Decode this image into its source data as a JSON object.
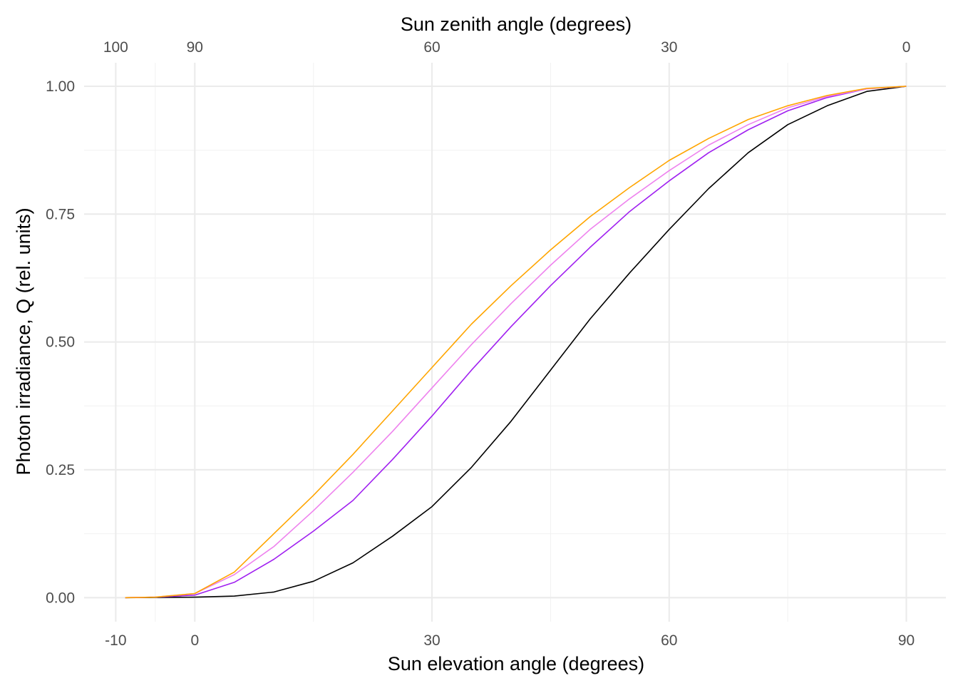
{
  "chart_data": {
    "type": "line",
    "title": "",
    "xlabel": "Sun elevation angle (degrees)",
    "x2label": "Sun zenith angle (degrees)",
    "ylabel": "Photon irradiance,  Q  (rel. units)",
    "xlim": [
      -14,
      95
    ],
    "ylim": [
      -0.047,
      1.046
    ],
    "grid": true,
    "x_ticks": [
      -10,
      0,
      30,
      60,
      90
    ],
    "x_tick_labels": [
      "-10",
      "0",
      "30",
      "60",
      "90"
    ],
    "x_minor": [
      -5,
      15,
      45,
      75
    ],
    "x2_ticks_elevation": [
      -10,
      0,
      30,
      60,
      90
    ],
    "x2_tick_labels": [
      "100",
      "90",
      "60",
      "30",
      "0"
    ],
    "y_ticks": [
      0,
      0.25,
      0.5,
      0.75,
      1.0
    ],
    "y_tick_labels": [
      "0.00",
      "0.25",
      "0.50",
      "0.75",
      "1.00"
    ],
    "y_minor": [
      0.125,
      0.375,
      0.625,
      0.875
    ],
    "series": [
      {
        "color": "#000000",
        "x": [
          -8.8,
          0,
          5,
          10,
          15,
          20,
          25,
          30,
          35,
          40,
          45,
          50,
          55,
          60,
          65,
          70,
          75,
          80,
          85,
          90
        ],
        "y": [
          0,
          0.001,
          0.003,
          0.011,
          0.032,
          0.068,
          0.12,
          0.178,
          0.255,
          0.345,
          0.445,
          0.545,
          0.635,
          0.72,
          0.8,
          0.87,
          0.925,
          0.962,
          0.99,
          1.0
        ]
      },
      {
        "color": "#A020F0",
        "x": [
          -8.8,
          -5,
          0,
          5,
          10,
          15,
          20,
          25,
          30,
          35,
          40,
          45,
          50,
          55,
          60,
          65,
          70,
          75,
          80,
          85,
          90
        ],
        "y": [
          0,
          0.001,
          0.005,
          0.03,
          0.075,
          0.13,
          0.19,
          0.27,
          0.355,
          0.445,
          0.53,
          0.61,
          0.685,
          0.755,
          0.815,
          0.87,
          0.915,
          0.952,
          0.978,
          0.995,
          1.0
        ]
      },
      {
        "color": "#EE82EE",
        "x": [
          -8.8,
          -5,
          0,
          5,
          10,
          15,
          20,
          25,
          30,
          35,
          40,
          45,
          50,
          55,
          60,
          65,
          70,
          75,
          80,
          85,
          90
        ],
        "y": [
          0,
          0.001,
          0.008,
          0.045,
          0.1,
          0.17,
          0.245,
          0.325,
          0.41,
          0.495,
          0.575,
          0.65,
          0.72,
          0.78,
          0.835,
          0.885,
          0.925,
          0.958,
          0.98,
          0.995,
          1.0
        ]
      },
      {
        "color": "#FFA500",
        "x": [
          -8.8,
          -5,
          0,
          5,
          10,
          15,
          20,
          25,
          30,
          35,
          40,
          45,
          50,
          55,
          60,
          65,
          70,
          75,
          80,
          85,
          90
        ],
        "y": [
          0,
          0.001,
          0.008,
          0.05,
          0.125,
          0.2,
          0.28,
          0.365,
          0.45,
          0.535,
          0.61,
          0.68,
          0.745,
          0.802,
          0.855,
          0.898,
          0.935,
          0.962,
          0.982,
          0.996,
          1.0
        ]
      }
    ]
  }
}
